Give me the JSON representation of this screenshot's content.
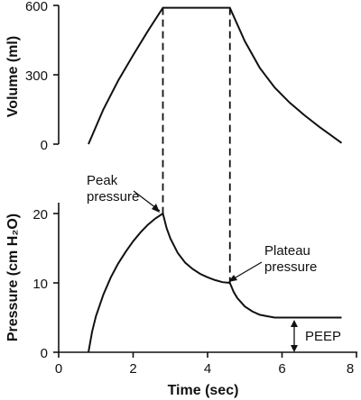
{
  "chart_data": [
    {
      "type": "line",
      "ylabel": "Volume (ml)",
      "xlim": [
        0,
        8
      ],
      "ylim": [
        0,
        600
      ],
      "y_ticks": [
        "0",
        "300",
        "600"
      ],
      "series": [
        {
          "x": [
            0.8,
            1.2,
            1.6,
            2.0,
            2.4,
            2.8,
            3.2,
            3.6,
            4.0,
            4.4,
            4.6,
            5.0,
            5.4,
            5.8,
            6.2,
            6.6,
            7.0,
            7.3,
            7.6
          ],
          "y": [
            0,
            150,
            275,
            385,
            490,
            590,
            590,
            590,
            590,
            590,
            590,
            445,
            330,
            245,
            180,
            125,
            75,
            40,
            5
          ]
        }
      ]
    },
    {
      "type": "line",
      "ylabel": "Pressure (cm H₂O)",
      "xlabel": "Time (sec)",
      "xlim": [
        0,
        8
      ],
      "ylim": [
        0,
        22
      ],
      "x_ticks": [
        "0",
        "2",
        "4",
        "6",
        "8"
      ],
      "y_ticks": [
        "0",
        "10",
        "20"
      ],
      "series": [
        {
          "x": [
            0.8,
            0.9,
            1.0,
            1.2,
            1.4,
            1.6,
            1.8,
            2.0,
            2.2,
            2.4,
            2.6,
            2.8,
            2.9,
            3.0,
            3.2,
            3.4,
            3.6,
            3.8,
            4.0,
            4.2,
            4.4,
            4.6,
            4.7,
            4.8,
            5.0,
            5.2,
            5.4,
            5.6,
            5.8,
            6.2,
            6.6,
            7.0,
            7.6
          ],
          "y": [
            0,
            3.0,
            5.2,
            8.3,
            10.8,
            12.8,
            14.5,
            16.0,
            17.3,
            18.4,
            19.3,
            20.0,
            17.9,
            16.4,
            14.3,
            12.9,
            12.0,
            11.3,
            10.8,
            10.4,
            10.1,
            10.0,
            8.7,
            7.8,
            6.6,
            5.9,
            5.4,
            5.2,
            5.0,
            5.0,
            5.0,
            5.0,
            5.0
          ]
        }
      ],
      "markers": {
        "peak_time": 2.8,
        "plateau_time": 4.6,
        "peep": 5
      },
      "annotations": {
        "peak_line1": "Peak",
        "peak_line2": "pressure",
        "plateau_line1": "Plateau",
        "plateau_line2": "pressure",
        "peep": "PEEP"
      }
    }
  ]
}
